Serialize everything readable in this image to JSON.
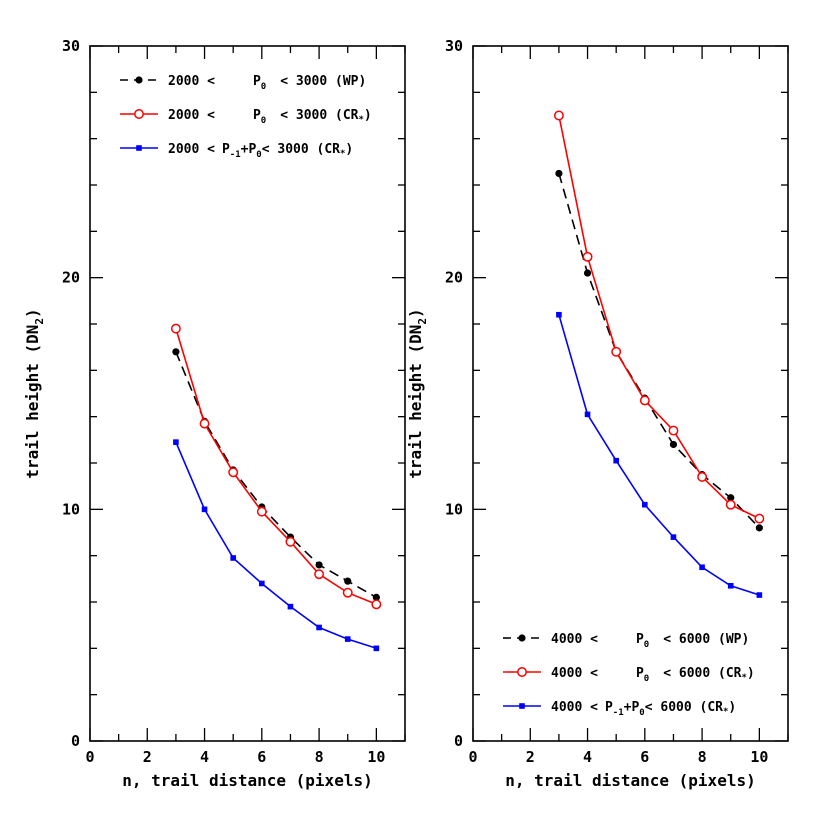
{
  "chart_data": [
    {
      "type": "line",
      "title": "",
      "xlabel": "n, trail distance (pixels)",
      "ylabel_main": "trail height (DN",
      "ylabel_sub": "2",
      "ylabel_tail": ")",
      "xlim": [
        0,
        11
      ],
      "ylim": [
        0,
        30
      ],
      "x_ticks": [
        0,
        2,
        4,
        6,
        8,
        10
      ],
      "y_ticks": [
        0,
        10,
        20,
        30
      ],
      "legend_position": "top",
      "x": [
        3,
        4,
        5,
        6,
        7,
        8,
        9,
        10
      ],
      "series": [
        {
          "name": "2000 < P0 < 3000 (WP)",
          "legend": {
            "pre": "2000 <",
            "main": "P",
            "sub": "0",
            "post": "< 3000 (WP)"
          },
          "color": "#000000",
          "style": "dashed",
          "marker": "dot",
          "values": [
            16.8,
            13.8,
            11.7,
            10.1,
            8.8,
            7.6,
            6.9,
            6.2
          ]
        },
        {
          "name": "2000 < P0 < 3000 (CR*)",
          "legend": {
            "pre": "2000 <",
            "main": "P",
            "sub": "0",
            "post": "< 3000 (CR",
            "star": "*",
            "end": ")"
          },
          "color": "#ff0000",
          "style": "solid",
          "marker": "open-circle",
          "values": [
            17.8,
            13.7,
            11.6,
            9.9,
            8.6,
            7.2,
            6.4,
            5.9
          ]
        },
        {
          "name": "2000 < P-1+P0 < 3000 (CR*)",
          "legend": {
            "pre": "2000 <",
            "main": "P",
            "sub": "-1",
            "mid": "+P",
            "sub2": "0",
            "post": "< 3000 (CR",
            "star": "*",
            "end": ")"
          },
          "color": "#0000ff",
          "style": "solid",
          "marker": "square",
          "values": [
            12.9,
            10.0,
            7.9,
            6.8,
            5.8,
            4.9,
            4.4,
            4.0
          ]
        }
      ]
    },
    {
      "type": "line",
      "title": "",
      "xlabel": "n, trail distance (pixels)",
      "ylabel_main": "trail height (DN",
      "ylabel_sub": "2",
      "ylabel_tail": ")",
      "xlim": [
        0,
        11
      ],
      "ylim": [
        0,
        30
      ],
      "x_ticks": [
        0,
        2,
        4,
        6,
        8,
        10
      ],
      "y_ticks": [
        0,
        10,
        20,
        30
      ],
      "legend_position": "bottom",
      "x": [
        3,
        4,
        5,
        6,
        7,
        8,
        9,
        10
      ],
      "series": [
        {
          "name": "4000 < P0 < 6000 (WP)",
          "legend": {
            "pre": "4000 <",
            "main": "P",
            "sub": "0",
            "post": "< 6000 (WP)"
          },
          "color": "#000000",
          "style": "dashed",
          "marker": "dot",
          "values": [
            24.5,
            20.2,
            16.8,
            14.8,
            12.8,
            11.5,
            10.5,
            9.2
          ]
        },
        {
          "name": "4000 < P0 < 6000 (CR*)",
          "legend": {
            "pre": "4000 <",
            "main": "P",
            "sub": "0",
            "post": "< 6000 (CR",
            "star": "*",
            "end": ")"
          },
          "color": "#ff0000",
          "style": "solid",
          "marker": "open-circle",
          "values": [
            27.0,
            20.9,
            16.8,
            14.7,
            13.4,
            11.4,
            10.2,
            9.6
          ]
        },
        {
          "name": "4000 < P-1+P0 < 6000 (CR*)",
          "legend": {
            "pre": "4000 <",
            "main": "P",
            "sub": "-1",
            "mid": "+P",
            "sub2": "0",
            "post": "< 6000 (CR",
            "star": "*",
            "end": ")"
          },
          "color": "#0000ff",
          "style": "solid",
          "marker": "square",
          "values": [
            18.4,
            14.1,
            12.1,
            10.2,
            8.8,
            7.5,
            6.7,
            6.3
          ]
        }
      ]
    }
  ]
}
